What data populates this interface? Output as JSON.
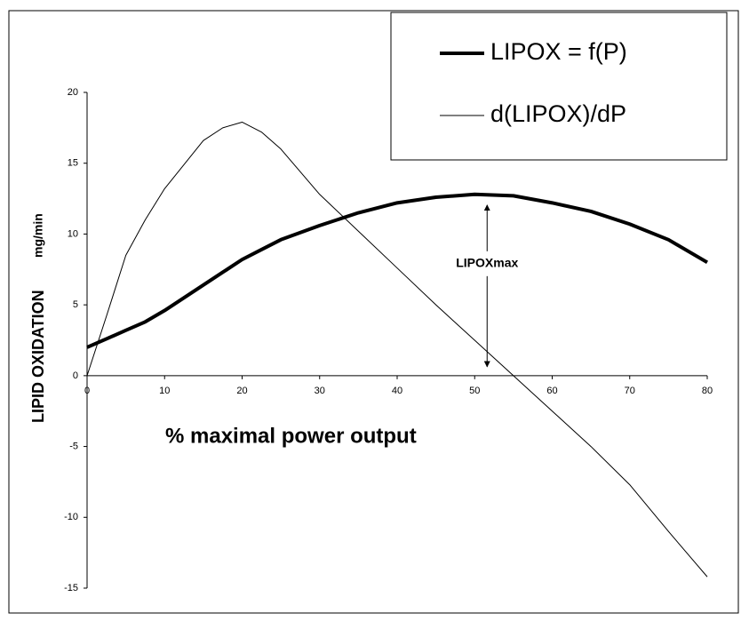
{
  "chart_data": {
    "type": "line",
    "x": [
      0,
      2.5,
      5,
      7.5,
      10,
      12.5,
      15,
      17.5,
      20,
      22.5,
      25,
      30,
      35,
      40,
      45,
      50,
      55,
      60,
      65,
      70,
      75,
      80
    ],
    "series": [
      {
        "name": "LIPOX = f(P)",
        "color": "#000000",
        "width": 4,
        "values": [
          2,
          2.6,
          3.2,
          3.8,
          4.6,
          5.5,
          6.4,
          7.3,
          8.2,
          8.9,
          9.6,
          10.6,
          11.5,
          12.2,
          12.6,
          12.8,
          12.7,
          12.2,
          11.6,
          10.7,
          9.6,
          8.0
        ]
      },
      {
        "name": "d(LIPOX)/dP",
        "color": "#000000",
        "width": 1,
        "values": [
          0,
          4.2,
          8.5,
          11,
          13.2,
          14.9,
          16.6,
          17.5,
          17.9,
          17.2,
          16,
          12.8,
          10.2,
          7.6,
          5,
          2.5,
          0,
          -2.5,
          -5,
          -7.7,
          -11,
          -14.2
        ]
      }
    ],
    "xlabel": "% maximal power output",
    "ylabel": "LIPID OXIDATION",
    "yunit": "mg/min",
    "annotation": "LIPOXmax",
    "xlim": [
      0,
      80
    ],
    "xticks": [
      0,
      10,
      20,
      30,
      40,
      50,
      60,
      70,
      80
    ],
    "ylim": [
      -15,
      20
    ],
    "yticks": [
      -15,
      -10,
      -5,
      0,
      5,
      10,
      15,
      20
    ],
    "grid": false,
    "legend": "upper right"
  }
}
